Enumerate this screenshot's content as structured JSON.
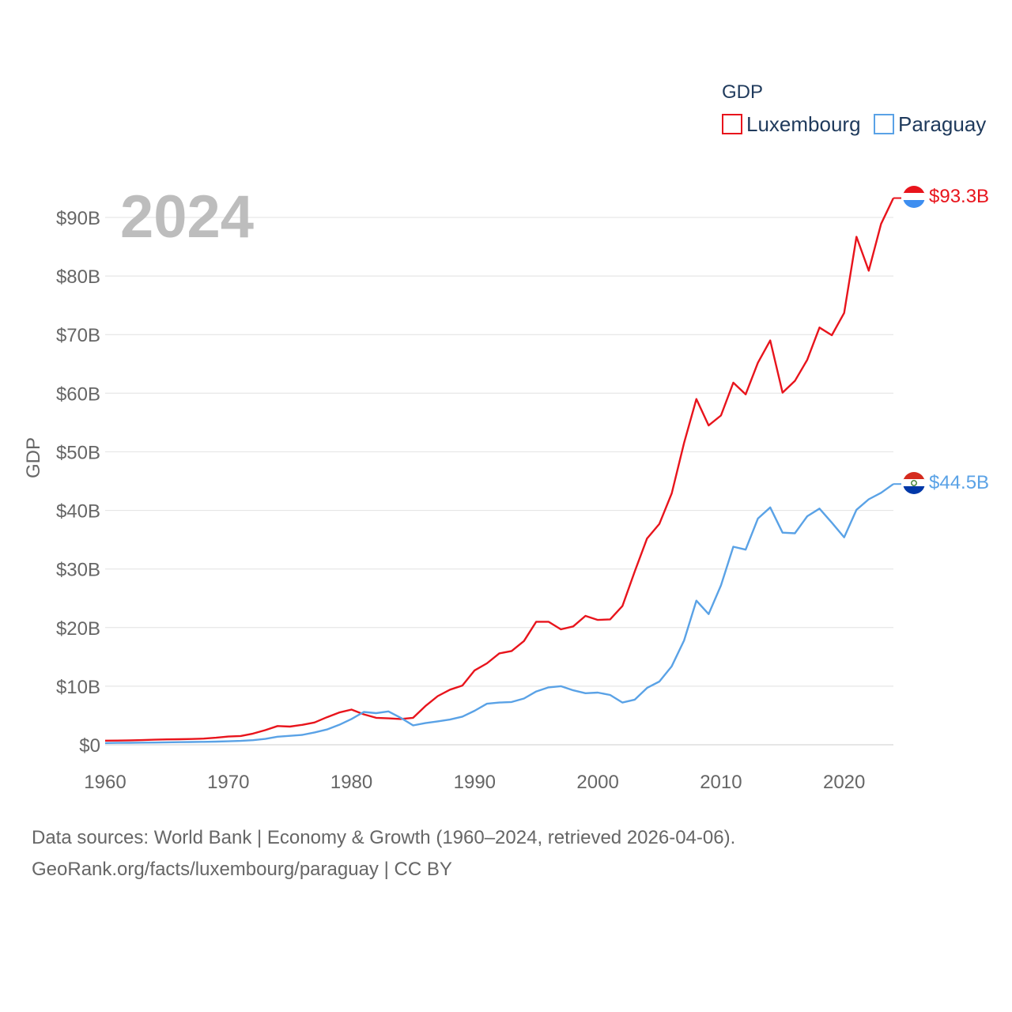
{
  "chart_data": {
    "type": "line",
    "title": "",
    "year_label": "2024",
    "ylabel": "GDP",
    "xlabel": "",
    "xlim": [
      1960,
      2024
    ],
    "ylim": [
      0,
      95
    ],
    "x_ticks": [
      1960,
      1970,
      1980,
      1990,
      2000,
      2010,
      2020
    ],
    "x_tick_labels": [
      "1960",
      "1970",
      "1980",
      "1990",
      "2000",
      "2010",
      "2020"
    ],
    "y_ticks": [
      0,
      10,
      20,
      30,
      40,
      50,
      60,
      70,
      80,
      90
    ],
    "y_tick_labels": [
      "$0",
      "$10B",
      "$20B",
      "$30B",
      "$40B",
      "$50B",
      "$60B",
      "$70B",
      "$80B",
      "$90B"
    ],
    "grid": true,
    "legend": {
      "title": "GDP",
      "position": "top-right"
    },
    "x": [
      1960,
      1961,
      1962,
      1963,
      1964,
      1965,
      1966,
      1967,
      1968,
      1969,
      1970,
      1971,
      1972,
      1973,
      1974,
      1975,
      1976,
      1977,
      1978,
      1979,
      1980,
      1981,
      1982,
      1983,
      1984,
      1985,
      1986,
      1987,
      1988,
      1989,
      1990,
      1991,
      1992,
      1993,
      1994,
      1995,
      1996,
      1997,
      1998,
      1999,
      2000,
      2001,
      2002,
      2003,
      2004,
      2005,
      2006,
      2007,
      2008,
      2009,
      2010,
      2011,
      2012,
      2013,
      2014,
      2015,
      2016,
      2017,
      2018,
      2019,
      2020,
      2021,
      2022,
      2023,
      2024
    ],
    "series": [
      {
        "name": "Luxembourg",
        "color": "#e8141c",
        "end_label": "$93.3B",
        "flag": "luxembourg-flag",
        "values": [
          0.7,
          0.72,
          0.75,
          0.8,
          0.87,
          0.92,
          0.95,
          0.98,
          1.05,
          1.2,
          1.4,
          1.5,
          1.9,
          2.5,
          3.2,
          3.1,
          3.4,
          3.8,
          4.7,
          5.5,
          6.0,
          5.2,
          4.6,
          4.5,
          4.4,
          4.6,
          6.6,
          8.3,
          9.4,
          10.1,
          12.7,
          13.9,
          15.6,
          16.0,
          17.7,
          21.0,
          21.0,
          19.7,
          20.2,
          22.0,
          21.3,
          21.4,
          23.7,
          29.6,
          35.2,
          37.7,
          42.9,
          51.5,
          59.0,
          54.5,
          56.2,
          61.8,
          59.8,
          65.2,
          69.0,
          60.1,
          62.1,
          65.7,
          71.2,
          69.9,
          73.7,
          86.7,
          80.9,
          88.9,
          93.3
        ]
      },
      {
        "name": "Paraguay",
        "color": "#5aa2e6",
        "end_label": "$44.5B",
        "flag": "paraguay-flag",
        "values": [
          0.3,
          0.32,
          0.34,
          0.36,
          0.38,
          0.42,
          0.44,
          0.47,
          0.5,
          0.54,
          0.6,
          0.66,
          0.78,
          1.0,
          1.38,
          1.52,
          1.68,
          2.1,
          2.6,
          3.4,
          4.4,
          5.6,
          5.4,
          5.7,
          4.6,
          3.3,
          3.7,
          4.0,
          4.3,
          4.8,
          5.8,
          7.0,
          7.2,
          7.3,
          7.9,
          9.1,
          9.8,
          10.0,
          9.3,
          8.8,
          8.9,
          8.5,
          7.2,
          7.7,
          9.7,
          10.8,
          13.4,
          17.8,
          24.6,
          22.3,
          27.2,
          33.8,
          33.3,
          38.6,
          40.5,
          36.2,
          36.1,
          39.0,
          40.3,
          37.9,
          35.4,
          40.1,
          41.9,
          43.0,
          44.5
        ]
      }
    ]
  },
  "source": {
    "line1": "Data sources: World Bank | Economy & Growth (1960–2024, retrieved 2026-04-06).",
    "line2": "GeoRank.org/facts/luxembourg/paraguay | CC BY"
  }
}
